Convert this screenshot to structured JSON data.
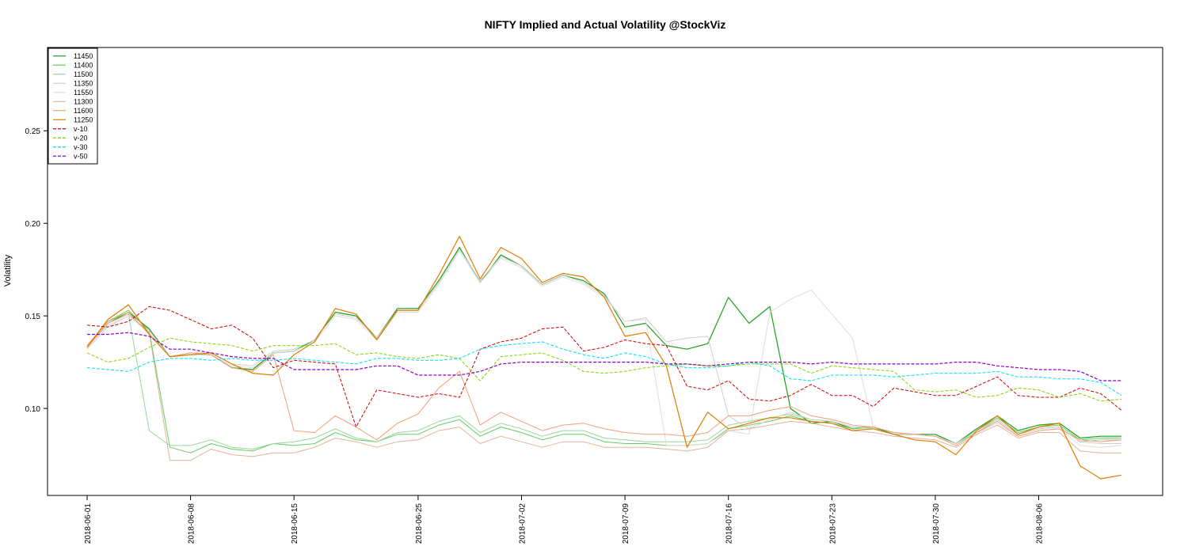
{
  "chart_data": {
    "type": "line",
    "title": "NIFTY Implied and Actual Volatility @StockViz",
    "xlabel": "",
    "ylabel": "Volatility",
    "ylim": [
      0.053,
      0.295
    ],
    "y_ticks": [
      0.1,
      0.15,
      0.2,
      0.25
    ],
    "y_tick_labels": [
      "0.10",
      "0.15",
      "0.20",
      "0.25"
    ],
    "x": [
      "2018-06-01",
      "2018-06-04",
      "2018-06-05",
      "2018-06-06",
      "2018-06-07",
      "2018-06-08",
      "2018-06-11",
      "2018-06-12",
      "2018-06-13",
      "2018-06-14",
      "2018-06-15",
      "2018-06-18",
      "2018-06-19",
      "2018-06-20",
      "2018-06-21",
      "2018-06-22",
      "2018-06-25",
      "2018-06-26",
      "2018-06-27",
      "2018-06-28",
      "2018-06-29",
      "2018-07-02",
      "2018-07-03",
      "2018-07-04",
      "2018-07-05",
      "2018-07-06",
      "2018-07-09",
      "2018-07-10",
      "2018-07-11",
      "2018-07-12",
      "2018-07-13",
      "2018-07-16",
      "2018-07-17",
      "2018-07-18",
      "2018-07-19",
      "2018-07-20",
      "2018-07-23",
      "2018-07-24",
      "2018-07-25",
      "2018-07-26",
      "2018-07-27",
      "2018-07-30",
      "2018-07-31",
      "2018-08-01",
      "2018-08-02",
      "2018-08-03",
      "2018-08-06",
      "2018-08-07",
      "2018-08-08",
      "2018-08-09",
      "2018-08-10"
    ],
    "x_ticks": [
      "2018-06-01",
      "2018-06-08",
      "2018-06-15",
      "2018-06-25",
      "2018-07-02",
      "2018-07-09",
      "2018-07-16",
      "2018-07-23",
      "2018-07-30",
      "2018-08-06"
    ],
    "legend_position": "top-left",
    "grid": false,
    "series": [
      {
        "name": "11450",
        "color": "#1b9e1b",
        "dashed": false,
        "width": 1.2,
        "values": [
          0.133,
          0.146,
          0.152,
          0.143,
          0.128,
          0.129,
          0.129,
          0.122,
          0.121,
          0.13,
          0.131,
          0.137,
          0.152,
          0.15,
          0.138,
          0.154,
          0.154,
          0.169,
          0.187,
          0.168,
          0.183,
          0.177,
          0.167,
          0.172,
          0.169,
          0.162,
          0.144,
          0.146,
          0.134,
          0.132,
          0.135,
          0.16,
          0.146,
          0.155,
          0.1,
          0.092,
          0.093,
          0.089,
          0.09,
          0.086,
          0.086,
          0.086,
          0.081,
          0.089,
          0.096,
          0.088,
          0.091,
          0.092,
          0.084,
          0.085,
          0.085
        ]
      },
      {
        "name": "11400",
        "color": "#66cc66",
        "dashed": false,
        "width": 1,
        "values": [
          0.134,
          0.147,
          0.153,
          0.142,
          0.079,
          0.076,
          0.081,
          0.078,
          0.077,
          0.081,
          0.08,
          0.081,
          0.087,
          0.083,
          0.082,
          0.086,
          0.086,
          0.091,
          0.094,
          0.085,
          0.09,
          0.087,
          0.083,
          0.086,
          0.086,
          0.082,
          0.081,
          0.081,
          0.08,
          0.08,
          0.081,
          0.089,
          0.091,
          0.093,
          0.096,
          0.093,
          0.092,
          0.089,
          0.09,
          0.087,
          0.086,
          0.085,
          0.081,
          0.088,
          0.095,
          0.087,
          0.09,
          0.091,
          0.083,
          0.084,
          0.084
        ]
      },
      {
        "name": "11500",
        "color": "#99d699",
        "dashed": false,
        "width": 1,
        "values": [
          0.134,
          0.146,
          0.151,
          0.088,
          0.08,
          0.08,
          0.083,
          0.079,
          0.078,
          0.081,
          0.082,
          0.084,
          0.089,
          0.084,
          0.082,
          0.087,
          0.088,
          0.093,
          0.096,
          0.087,
          0.092,
          0.089,
          0.085,
          0.088,
          0.088,
          0.084,
          0.083,
          0.082,
          0.082,
          0.082,
          0.083,
          0.091,
          0.093,
          0.095,
          0.097,
          0.094,
          0.093,
          0.09,
          0.09,
          0.087,
          0.086,
          0.085,
          0.081,
          0.087,
          0.094,
          0.086,
          0.089,
          0.09,
          0.082,
          0.083,
          0.083
        ]
      },
      {
        "name": "11350",
        "color": "#cfcfcf",
        "dashed": false,
        "width": 1,
        "values": [
          0.132,
          0.144,
          0.15,
          0.142,
          0.128,
          0.13,
          0.13,
          0.124,
          0.123,
          0.131,
          0.132,
          0.137,
          0.151,
          0.149,
          0.138,
          0.153,
          0.153,
          0.168,
          0.186,
          0.169,
          0.182,
          0.177,
          0.167,
          0.172,
          0.168,
          0.161,
          0.147,
          0.149,
          0.136,
          0.138,
          0.139,
          0.096,
          0.089,
          0.094,
          0.098,
          0.094,
          0.093,
          0.09,
          0.089,
          0.086,
          0.086,
          0.085,
          0.081,
          0.088,
          0.094,
          0.086,
          0.089,
          0.09,
          0.082,
          0.081,
          0.081
        ]
      },
      {
        "name": "11550",
        "color": "#dddddd",
        "dashed": false,
        "width": 1,
        "values": [
          0.133,
          0.145,
          0.15,
          0.141,
          0.128,
          0.129,
          0.129,
          0.123,
          0.122,
          0.13,
          0.131,
          0.136,
          0.15,
          0.148,
          0.137,
          0.152,
          0.152,
          0.167,
          0.185,
          0.168,
          0.181,
          0.176,
          0.166,
          0.171,
          0.167,
          0.16,
          0.147,
          0.148,
          0.08,
          0.08,
          0.081,
          0.088,
          0.086,
          0.152,
          0.159,
          0.164,
          0.151,
          0.138,
          0.09,
          0.087,
          0.086,
          0.085,
          0.08,
          0.087,
          0.092,
          0.085,
          0.088,
          0.089,
          0.08,
          0.079,
          0.08
        ]
      },
      {
        "name": "11300",
        "color": "#e0b49a",
        "dashed": false,
        "width": 1,
        "values": [
          0.133,
          0.146,
          0.151,
          0.141,
          0.072,
          0.072,
          0.078,
          0.075,
          0.074,
          0.076,
          0.076,
          0.079,
          0.084,
          0.082,
          0.079,
          0.082,
          0.083,
          0.088,
          0.09,
          0.081,
          0.085,
          0.082,
          0.079,
          0.082,
          0.082,
          0.079,
          0.079,
          0.079,
          0.078,
          0.077,
          0.079,
          0.088,
          0.089,
          0.091,
          0.093,
          0.092,
          0.09,
          0.088,
          0.087,
          0.085,
          0.084,
          0.083,
          0.079,
          0.086,
          0.091,
          0.084,
          0.087,
          0.087,
          0.077,
          0.076,
          0.076
        ]
      },
      {
        "name": "11600",
        "color": "#f0a078",
        "dashed": false,
        "width": 1,
        "values": [
          0.134,
          0.147,
          0.152,
          0.14,
          0.128,
          0.13,
          0.129,
          0.122,
          0.12,
          0.129,
          0.088,
          0.087,
          0.096,
          0.09,
          0.083,
          0.092,
          0.097,
          0.111,
          0.12,
          0.091,
          0.098,
          0.093,
          0.088,
          0.091,
          0.092,
          0.089,
          0.087,
          0.086,
          0.086,
          0.085,
          0.087,
          0.096,
          0.096,
          0.099,
          0.101,
          0.096,
          0.094,
          0.091,
          0.09,
          0.087,
          0.086,
          0.085,
          0.08,
          0.087,
          0.093,
          0.085,
          0.088,
          0.089,
          0.083,
          0.082,
          0.083
        ]
      },
      {
        "name": "11250",
        "color": "#e07b00",
        "dashed": false,
        "width": 1.2,
        "values": [
          0.133,
          0.148,
          0.156,
          0.14,
          0.128,
          0.129,
          0.13,
          0.124,
          0.119,
          0.118,
          0.129,
          0.136,
          0.154,
          0.151,
          0.137,
          0.153,
          0.153,
          0.172,
          0.193,
          0.17,
          0.187,
          0.181,
          0.168,
          0.173,
          0.171,
          0.16,
          0.139,
          0.141,
          0.123,
          0.079,
          0.098,
          0.089,
          0.092,
          0.095,
          0.095,
          0.093,
          0.092,
          0.088,
          0.089,
          0.086,
          0.083,
          0.082,
          0.075,
          0.088,
          0.096,
          0.086,
          0.09,
          0.092,
          0.069,
          0.062,
          0.064
        ]
      },
      {
        "name": "v-10",
        "color": "#cc0000",
        "dashed": true,
        "width": 1,
        "values": [
          0.145,
          0.144,
          0.147,
          0.155,
          0.153,
          0.148,
          0.143,
          0.145,
          0.138,
          0.122,
          0.126,
          0.125,
          0.124,
          0.09,
          0.11,
          0.108,
          0.106,
          0.108,
          0.106,
          0.132,
          0.136,
          0.138,
          0.143,
          0.144,
          0.131,
          0.133,
          0.137,
          0.135,
          0.134,
          0.112,
          0.11,
          0.115,
          0.105,
          0.104,
          0.107,
          0.113,
          0.107,
          0.107,
          0.101,
          0.111,
          0.109,
          0.107,
          0.107,
          0.112,
          0.117,
          0.107,
          0.106,
          0.106,
          0.111,
          0.108,
          0.099
        ]
      },
      {
        "name": "v-20",
        "color": "#7fd600",
        "dashed": true,
        "width": 1,
        "values": [
          0.13,
          0.125,
          0.127,
          0.133,
          0.138,
          0.136,
          0.135,
          0.134,
          0.131,
          0.134,
          0.134,
          0.134,
          0.135,
          0.129,
          0.13,
          0.128,
          0.127,
          0.129,
          0.127,
          0.115,
          0.128,
          0.129,
          0.13,
          0.126,
          0.12,
          0.119,
          0.12,
          0.122,
          0.123,
          0.124,
          0.123,
          0.123,
          0.124,
          0.124,
          0.124,
          0.119,
          0.123,
          0.122,
          0.121,
          0.12,
          0.11,
          0.109,
          0.11,
          0.106,
          0.107,
          0.111,
          0.11,
          0.106,
          0.108,
          0.104,
          0.105
        ]
      },
      {
        "name": "v-30",
        "color": "#00e0e8",
        "dashed": true,
        "width": 1,
        "values": [
          0.122,
          0.121,
          0.12,
          0.125,
          0.127,
          0.127,
          0.126,
          0.127,
          0.126,
          0.126,
          0.127,
          0.126,
          0.125,
          0.124,
          0.127,
          0.127,
          0.126,
          0.126,
          0.127,
          0.132,
          0.134,
          0.135,
          0.136,
          0.132,
          0.129,
          0.127,
          0.13,
          0.128,
          0.124,
          0.122,
          0.122,
          0.123,
          0.125,
          0.123,
          0.116,
          0.115,
          0.118,
          0.118,
          0.118,
          0.117,
          0.118,
          0.119,
          0.119,
          0.119,
          0.12,
          0.117,
          0.117,
          0.116,
          0.116,
          0.114,
          0.107
        ]
      },
      {
        "name": "v-50",
        "color": "#8b00c8",
        "dashed": true,
        "width": 1.2,
        "values": [
          0.14,
          0.14,
          0.141,
          0.139,
          0.132,
          0.132,
          0.13,
          0.128,
          0.127,
          0.127,
          0.121,
          0.121,
          0.121,
          0.121,
          0.123,
          0.123,
          0.118,
          0.118,
          0.118,
          0.12,
          0.124,
          0.125,
          0.125,
          0.125,
          0.125,
          0.125,
          0.125,
          0.125,
          0.124,
          0.124,
          0.123,
          0.124,
          0.125,
          0.125,
          0.125,
          0.124,
          0.125,
          0.124,
          0.124,
          0.124,
          0.124,
          0.124,
          0.125,
          0.125,
          0.123,
          0.122,
          0.121,
          0.121,
          0.12,
          0.115,
          0.115
        ]
      }
    ]
  }
}
